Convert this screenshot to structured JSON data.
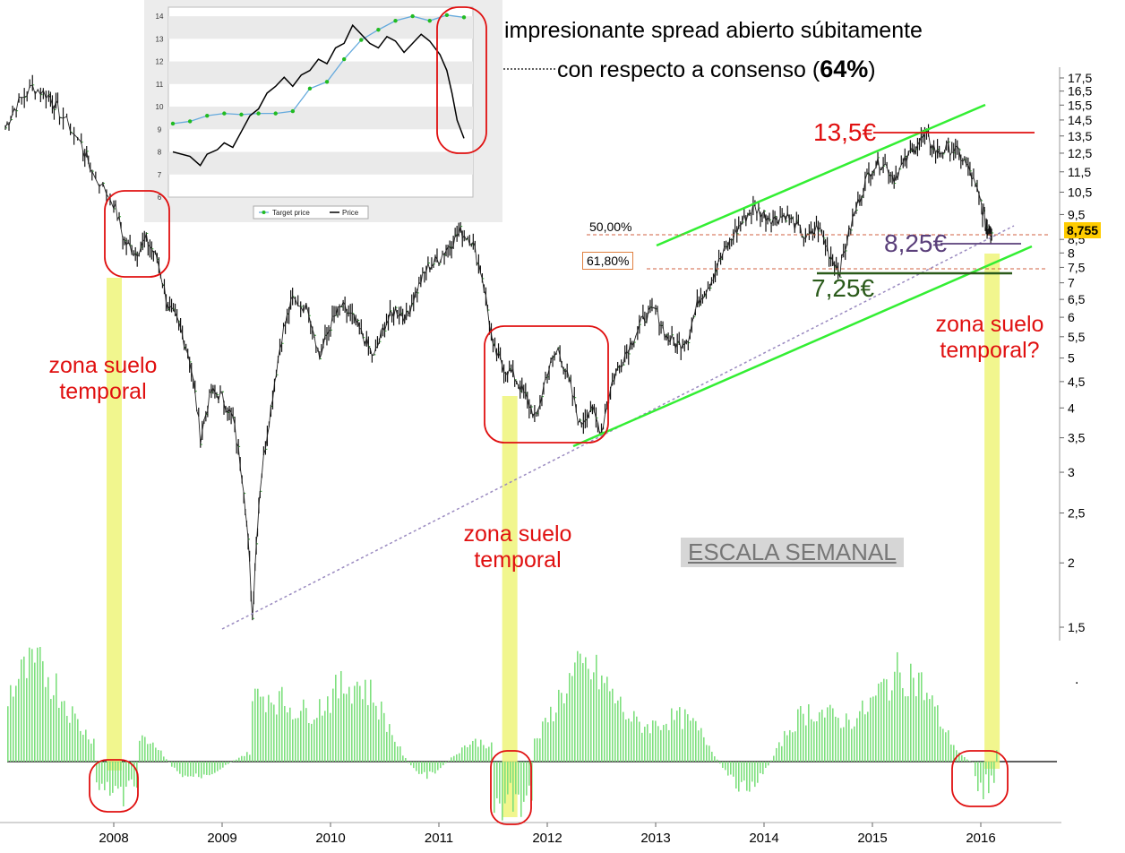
{
  "annotations": {
    "spread_line1": "impresionante spread abierto súbitamente",
    "spread_line2_pre": "con respecto a consenso (",
    "spread_pct": "64%",
    "spread_line2_post": ")",
    "zona1_l1": "zona suelo",
    "zona1_l2": "temporal",
    "zona2_l1": "zona suelo",
    "zona2_l2": "temporal",
    "zona3_l1": "zona suelo",
    "zona3_l2": "temporal?",
    "price_135": "13,5€",
    "price_825": "8,25€",
    "price_725": "7,25€",
    "fib_50": "50,00%",
    "fib_618": "61,80%",
    "last_price": "8,755",
    "scale_label": "ESCALA SEMANAL",
    "dot": "."
  },
  "colors": {
    "annotation_red": "#e01010",
    "channel_green": "#33ee33",
    "support_dark_green": "#2a5a1a",
    "purple": "#5a3f7a",
    "highlight_yellow": "#eef57a",
    "fib_line": "#d06040",
    "last_price_badge": "#ffcc00"
  },
  "chart_data": [
    {
      "type": "line",
      "description_scale": "log",
      "y_ticks": [
        "1,5",
        "2",
        "2,5",
        "3",
        "3,5",
        "4",
        "4,5",
        "5",
        "5,5",
        "6",
        "6,5",
        "7",
        "7,5",
        "8",
        "8,5",
        "9,5",
        "10,5",
        "11,5",
        "12,5",
        "13,5",
        "14,5",
        "15,5",
        "16,5",
        "17,5"
      ],
      "y_tick_values": [
        1.5,
        2,
        2.5,
        3,
        3.5,
        4,
        4.5,
        5,
        5.5,
        6,
        6.5,
        7,
        7.5,
        8,
        8.5,
        9.5,
        10.5,
        11.5,
        12.5,
        13.5,
        14.5,
        15.5,
        16.5,
        17.5
      ],
      "x_ticks": [
        "2008",
        "2009",
        "2010",
        "2011",
        "2012",
        "2013",
        "2014",
        "2015",
        "2016"
      ],
      "ylim": [
        1.4,
        18
      ],
      "series": [
        {
          "x": [
            2007.0,
            2007.1,
            2007.25,
            2007.4,
            2007.5,
            2007.7,
            2007.8,
            2008.0,
            2008.1,
            2008.2,
            2008.3,
            2008.4,
            2008.5,
            2008.6,
            2008.7,
            2008.8,
            2008.9,
            2009.0,
            2009.1,
            2009.2,
            2009.28,
            2009.35,
            2009.45,
            2009.55,
            2009.65,
            2009.8,
            2009.9,
            2010.0,
            2010.1,
            2010.2,
            2010.3,
            2010.4,
            2010.5,
            2010.6,
            2010.7,
            2010.8,
            2010.9,
            2011.0,
            2011.1,
            2011.2,
            2011.3,
            2011.4,
            2011.5,
            2011.6,
            2011.7,
            2011.8,
            2011.9,
            2012.0,
            2012.1,
            2012.2,
            2012.3,
            2012.4,
            2012.5,
            2012.6,
            2012.7,
            2012.8,
            2012.9,
            2013.0,
            2013.1,
            2013.2,
            2013.3,
            2013.4,
            2013.5,
            2013.6,
            2013.7,
            2013.8,
            2013.9,
            2014.0,
            2014.1,
            2014.2,
            2014.3,
            2014.4,
            2014.5,
            2014.6,
            2014.7,
            2014.8,
            2014.9,
            2015.0,
            2015.1,
            2015.2,
            2015.3,
            2015.4,
            2015.5,
            2015.6,
            2015.7,
            2015.8,
            2015.9,
            2016.0,
            2016.05,
            2016.1
          ],
          "values": [
            14,
            15.5,
            16.8,
            16.2,
            15,
            13,
            11.5,
            10,
            8.4,
            8,
            8.5,
            7.8,
            6.3,
            5.8,
            5,
            3.5,
            4.3,
            4.2,
            3.8,
            2.8,
            1.56,
            2.8,
            4,
            5.5,
            6.5,
            6.2,
            5,
            5.8,
            6.3,
            6,
            5.5,
            5,
            5.8,
            6.2,
            6,
            6.8,
            7.5,
            7.8,
            8.3,
            8.8,
            8.5,
            7.2,
            5.2,
            4.8,
            4.6,
            4.2,
            3.8,
            4.7,
            5.2,
            4.5,
            3.7,
            4,
            3.6,
            4.5,
            5,
            5.5,
            6,
            6.2,
            5.5,
            5.3,
            5.5,
            6.5,
            7,
            7.8,
            8.5,
            9.2,
            9.8,
            9.5,
            9.3,
            9.5,
            9,
            8.5,
            9,
            8,
            7.4,
            9,
            10.5,
            11.8,
            12,
            11.2,
            12,
            13,
            13.5,
            12.5,
            12.8,
            12.5,
            11.5,
            10,
            9,
            8.75
          ]
        },
        {
          "name": "volume",
          "type": "bar"
        }
      ]
    },
    {
      "type": "line",
      "y_ticks": [
        "6",
        "7",
        "8",
        "9",
        "10",
        "11",
        "12",
        "13",
        "14"
      ],
      "ylim": [
        6,
        14.4
      ],
      "legend": "bottom",
      "series": [
        {
          "name": "Target price",
          "x": [
            0,
            1,
            2,
            3,
            4,
            5,
            6,
            7,
            8,
            9,
            10,
            11,
            12,
            13,
            14,
            15,
            16,
            17
          ],
          "values": [
            9.25,
            9.35,
            9.6,
            9.7,
            9.65,
            9.7,
            9.7,
            9.8,
            10.8,
            11.1,
            12.1,
            12.95,
            13.4,
            13.8,
            14.0,
            13.8,
            14.05,
            13.95
          ]
        },
        {
          "name": "Price",
          "x": [
            0,
            1,
            1.6,
            2,
            2.6,
            3,
            3.5,
            4,
            4.5,
            5,
            5.5,
            6,
            6.5,
            7,
            7.5,
            8,
            8.5,
            9,
            9.5,
            10,
            10.5,
            11,
            11.5,
            12,
            12.5,
            13,
            13.5,
            14,
            14.5,
            15,
            15.3,
            15.6,
            16,
            16.3,
            16.6,
            17
          ],
          "values": [
            8,
            7.8,
            7.4,
            7.9,
            8.1,
            8.4,
            8.2,
            8.9,
            9.6,
            9.9,
            10.6,
            10.9,
            11.3,
            10.9,
            11.4,
            11.6,
            12.1,
            11.9,
            12.6,
            12.8,
            13.6,
            13.2,
            12.8,
            12.6,
            13.1,
            12.9,
            12.4,
            12.8,
            13.2,
            12.9,
            12.6,
            12.3,
            11.6,
            10.6,
            9.4,
            8.6
          ]
        }
      ]
    }
  ]
}
